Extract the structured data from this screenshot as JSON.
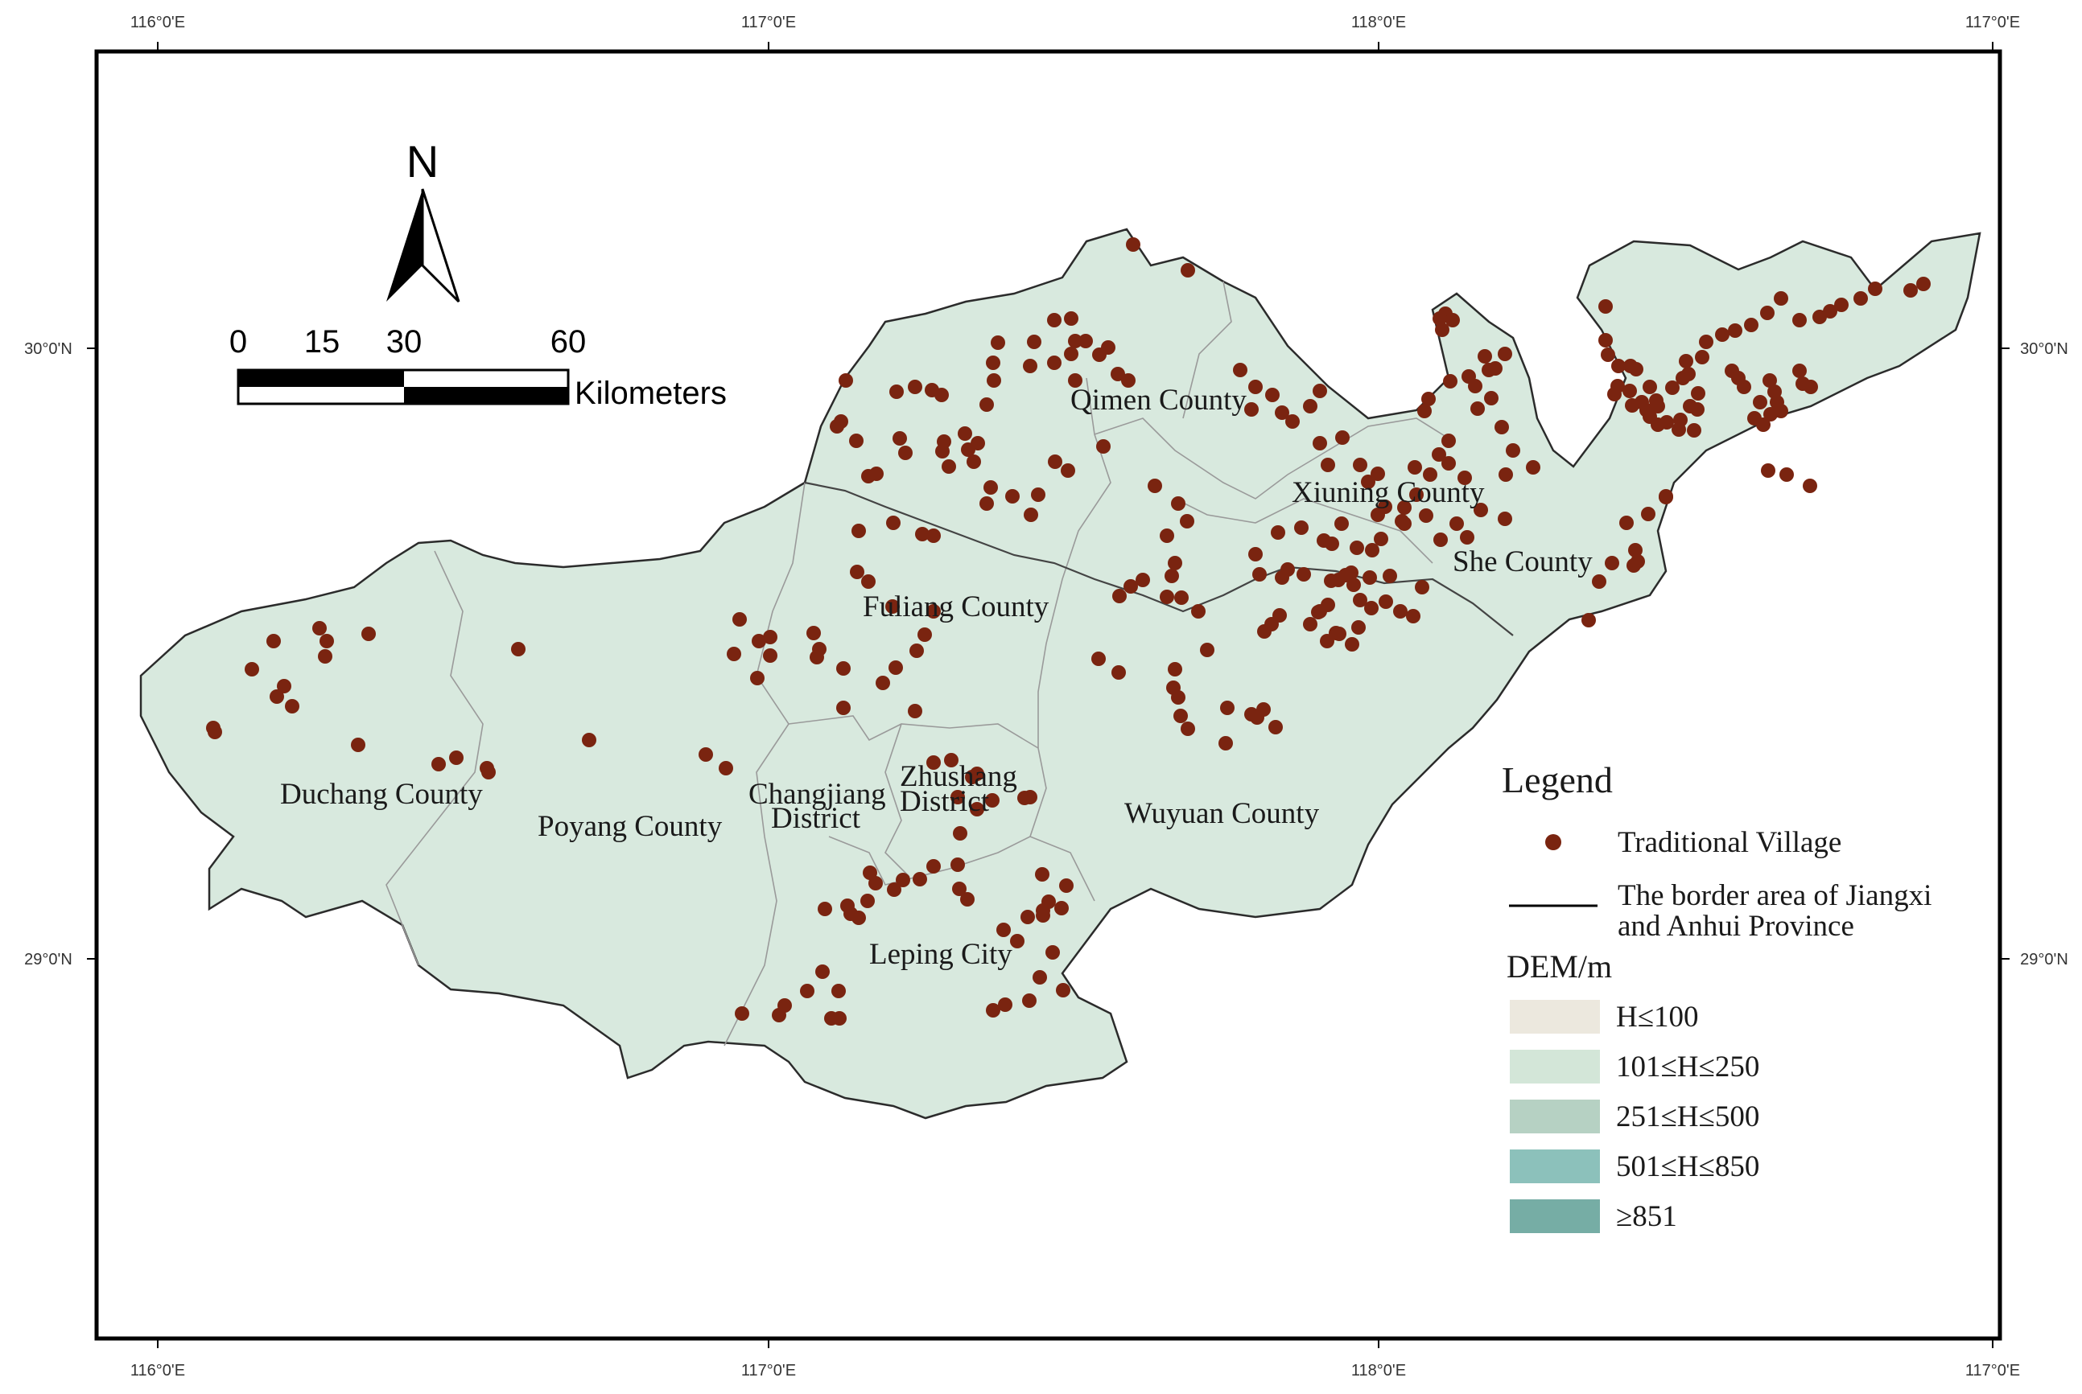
{
  "graticule": {
    "top_labels": [
      "116°0'E",
      "117°0'E",
      "118°0'E",
      "117°0'E"
    ],
    "bottom_labels": [
      "116°0'E",
      "117°0'E",
      "118°0'E",
      "117°0'E"
    ],
    "left_labels": [
      "30°0'N",
      "29°0'N"
    ],
    "right_labels": [
      "30°0'N",
      "29°0'N"
    ]
  },
  "north_arrow": {
    "label": "N"
  },
  "scale_bar": {
    "ticks": [
      "0",
      "15",
      "30",
      "60"
    ],
    "unit": "Kilometers"
  },
  "places": {
    "qimen": "Qimen County",
    "xiuning": "Xiuning County",
    "she": "She County",
    "fuliang": "Fuliang County",
    "duchang": "Duchang County",
    "poyang": "Poyang County",
    "changjiang_1": "Changjiang",
    "changjiang_2": "District",
    "zhushang_1": "Zhushang",
    "zhushang_2": "District",
    "wuyuan": "Wuyuan County",
    "leping": "Leping City"
  },
  "legend": {
    "title": "Legend",
    "village": "Traditional Village",
    "border_1": "The border area of Jiangxi",
    "border_2": "and Anhui Province",
    "dem_title": "DEM/m",
    "classes": [
      {
        "label": "H≤100",
        "color": "#ece8de"
      },
      {
        "label": "101≤H≤250",
        "color": "#d3e6d8"
      },
      {
        "label": "251≤H≤500",
        "color": "#b6d1c3"
      },
      {
        "label": "501≤H≤850",
        "color": "#8cc1bb"
      },
      {
        "label": "≥851",
        "color": "#76ada5"
      }
    ]
  },
  "colors": {
    "village": "#7a2410",
    "base_land": "#d8e9de",
    "hills": "#b4d6cb",
    "mountains": "#86bcb5",
    "border": "#2b2b2b"
  }
}
